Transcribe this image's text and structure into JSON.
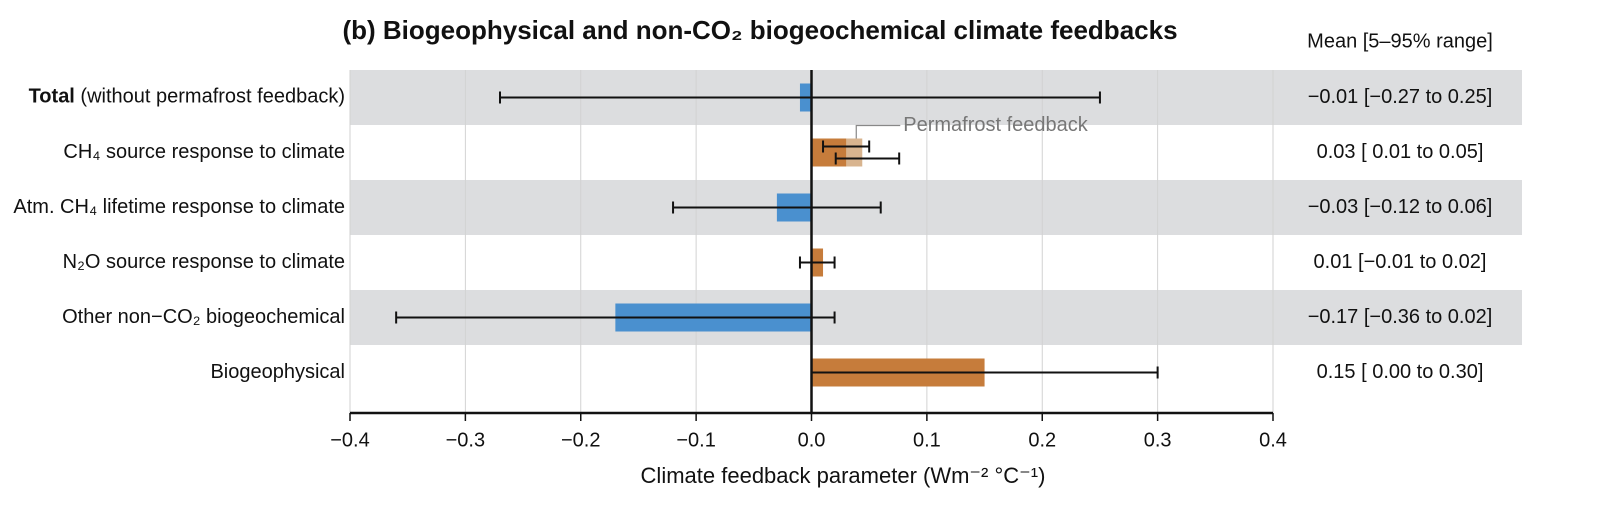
{
  "chart_data": {
    "type": "bar",
    "orientation": "horizontal",
    "title": "(b) Biogeophysical and non-CO₂ biogeochemical climate feedbacks",
    "value_header": "Mean [5–95% range]",
    "xlabel": "Climate feedback parameter (Wm⁻² °C⁻¹)",
    "categories": [
      "Total (without permafrost feedback)",
      "CH₄ source response to climate",
      "Atm. CH₄ lifetime response to climate",
      "N₂O source response to climate",
      "Other non−CO₂ biogeochemical",
      "Biogeophysical"
    ],
    "values": [
      -0.01,
      0.03,
      -0.03,
      0.01,
      -0.17,
      0.15
    ],
    "low": [
      -0.27,
      0.01,
      -0.12,
      -0.01,
      -0.36,
      0.0
    ],
    "high": [
      0.25,
      0.05,
      0.06,
      0.02,
      0.02,
      0.3
    ],
    "value_labels": [
      "−0.01 [−0.27 to 0.25]",
      "0.03 [ 0.01 to 0.05]",
      "−0.03 [−0.12 to 0.06]",
      "0.01 [−0.01 to 0.02]",
      "−0.17 [−0.36 to 0.02]",
      "0.15 [ 0.00 to 0.30]"
    ],
    "colors": {
      "positive": "#c67c3b",
      "negative": "#4a90cf"
    },
    "permafrost": {
      "label": "Permafrost feedback",
      "color": "#d8b48f",
      "values": [
        null,
        0.044,
        null,
        null,
        null,
        null
      ],
      "low": [
        null,
        0.021,
        null,
        null,
        null,
        null
      ],
      "high": [
        null,
        0.076,
        null,
        null,
        null,
        null
      ]
    },
    "xlim": [
      -0.4,
      0.4
    ],
    "xticks": [
      {
        "value": -0.4,
        "label": "−0.4"
      },
      {
        "value": -0.3,
        "label": "−0.3"
      },
      {
        "value": -0.2,
        "label": "−0.2"
      },
      {
        "value": -0.1,
        "label": "−0.1"
      },
      {
        "value": 0,
        "label": "0.0"
      },
      0.1,
      0.2,
      0.3,
      0.4
    ],
    "grid": true,
    "row_shading": true
  }
}
